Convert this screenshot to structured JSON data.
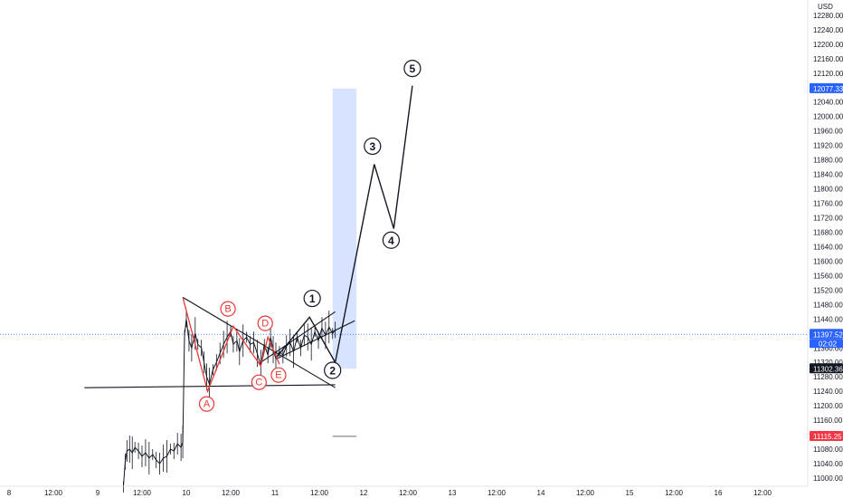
{
  "chart_data": {
    "type": "line",
    "currency": "USD",
    "y_range": [
      10960,
      12300
    ],
    "x_range": [
      8.0,
      17.0
    ],
    "grid": false,
    "y_ticks": [
      11000,
      11040,
      11080,
      11120,
      11160,
      11200,
      11240,
      11280,
      11320,
      11360,
      11400,
      11440,
      11480,
      11520,
      11560,
      11600,
      11640,
      11680,
      11720,
      11760,
      11800,
      11840,
      11880,
      11920,
      11960,
      12000,
      12040,
      12080,
      12120,
      12160,
      12200,
      12240,
      12280
    ],
    "y_tick_labels": [
      "11000.00",
      "11040.00",
      "11080.00",
      "11120.00",
      "11160.00",
      "11200.00",
      "11240.00",
      "11280.00",
      "11320.00",
      "11360.00",
      "11400.00",
      "11440.00",
      "11480.00",
      "11520.00",
      "11560.00",
      "11600.00",
      "11640.00",
      "11680.00",
      "11720.00",
      "11760.00",
      "11800.00",
      "11840.00",
      "11880.00",
      "11920.00",
      "11960.00",
      "12000.00",
      "12040.00",
      "12080.00",
      "12120.00",
      "12160.00",
      "12200.00",
      "12240.00",
      "12280.00"
    ],
    "x_ticks": [
      {
        "x": 8.0,
        "label": "8"
      },
      {
        "x": 8.5,
        "label": "12:00"
      },
      {
        "x": 9.0,
        "label": "9"
      },
      {
        "x": 9.5,
        "label": "12:00"
      },
      {
        "x": 10.0,
        "label": "10"
      },
      {
        "x": 10.5,
        "label": "12:00"
      },
      {
        "x": 11.0,
        "label": "11"
      },
      {
        "x": 11.5,
        "label": "12:00"
      },
      {
        "x": 12.0,
        "label": "12"
      },
      {
        "x": 12.5,
        "label": "12:00"
      },
      {
        "x": 13.0,
        "label": "13"
      },
      {
        "x": 13.5,
        "label": "12:00"
      },
      {
        "x": 14.0,
        "label": "14"
      },
      {
        "x": 14.5,
        "label": "12:00"
      },
      {
        "x": 15.0,
        "label": "15"
      },
      {
        "x": 15.5,
        "label": "12:00"
      },
      {
        "x": 16.0,
        "label": "16"
      },
      {
        "x": 16.5,
        "label": "12:00"
      }
    ],
    "price_series": [
      [
        9.29,
        10975
      ],
      [
        9.31,
        11045
      ],
      [
        9.33,
        11075
      ],
      [
        9.36,
        11080
      ],
      [
        9.39,
        11070
      ],
      [
        9.42,
        11085
      ],
      [
        9.46,
        11075
      ],
      [
        9.5,
        11060
      ],
      [
        9.54,
        11070
      ],
      [
        9.58,
        11055
      ],
      [
        9.62,
        11065
      ],
      [
        9.66,
        11050
      ],
      [
        9.7,
        11040
      ],
      [
        9.74,
        11055
      ],
      [
        9.78,
        11060
      ],
      [
        9.82,
        11080
      ],
      [
        9.86,
        11075
      ],
      [
        9.9,
        11095
      ],
      [
        9.94,
        11085
      ],
      [
        9.96,
        11100
      ],
      [
        9.98,
        11395
      ],
      [
        10.0,
        11440
      ],
      [
        10.03,
        11380
      ],
      [
        10.06,
        11360
      ],
      [
        10.1,
        11400
      ],
      [
        10.13,
        11370
      ],
      [
        10.17,
        11360
      ],
      [
        10.2,
        11320
      ],
      [
        10.23,
        11280
      ],
      [
        10.26,
        11260
      ],
      [
        10.3,
        11300
      ],
      [
        10.34,
        11320
      ],
      [
        10.38,
        11345
      ],
      [
        10.42,
        11370
      ],
      [
        10.46,
        11390
      ],
      [
        10.5,
        11405
      ],
      [
        10.53,
        11370
      ],
      [
        10.57,
        11380
      ],
      [
        10.6,
        11350
      ],
      [
        10.64,
        11380
      ],
      [
        10.68,
        11390
      ],
      [
        10.72,
        11370
      ],
      [
        10.76,
        11375
      ],
      [
        10.8,
        11345
      ],
      [
        10.84,
        11310
      ],
      [
        10.88,
        11370
      ],
      [
        10.92,
        11340
      ],
      [
        10.95,
        11390
      ],
      [
        10.98,
        11355
      ],
      [
        11.01,
        11330
      ],
      [
        11.05,
        11350
      ],
      [
        11.09,
        11340
      ],
      [
        11.13,
        11365
      ],
      [
        11.17,
        11375
      ],
      [
        11.21,
        11350
      ],
      [
        11.25,
        11390
      ],
      [
        11.29,
        11360
      ],
      [
        11.33,
        11395
      ],
      [
        11.37,
        11390
      ],
      [
        11.41,
        11370
      ],
      [
        11.45,
        11405
      ],
      [
        11.49,
        11380
      ],
      [
        11.53,
        11415
      ],
      [
        11.57,
        11395
      ],
      [
        11.61,
        11418
      ],
      [
        11.65,
        11400
      ],
      [
        11.68,
        11410
      ]
    ],
    "wave_abcde": [
      [
        9.96,
        11500
      ],
      [
        10.24,
        11240
      ],
      [
        10.53,
        11420
      ],
      [
        10.84,
        11310
      ],
      [
        10.92,
        11390
      ],
      [
        11.05,
        11315
      ]
    ],
    "projection_path": [
      [
        11.02,
        11335
      ],
      [
        11.39,
        11445
      ],
      [
        11.68,
        11320
      ],
      [
        12.12,
        11868
      ],
      [
        12.34,
        11690
      ],
      [
        12.55,
        12085
      ]
    ],
    "trendlines": [
      [
        [
          9.96,
          11500
        ],
        [
          11.68,
          11250
        ]
      ],
      [
        [
          8.85,
          11250
        ],
        [
          11.68,
          11258
        ]
      ],
      [
        [
          10.84,
          11320
        ],
        [
          11.68,
          11460
        ]
      ],
      [
        [
          11.02,
          11330
        ],
        [
          11.9,
          11435
        ]
      ]
    ],
    "long_box": {
      "x0": 11.65,
      "x1": 11.92,
      "y0": 11302.36,
      "y1": 12077.33
    },
    "short_box": {
      "x0": 11.65,
      "x1": 11.92,
      "y0": 11115.25,
      "y1": 11302.36
    },
    "current_price": 11397.52,
    "price_marker_lines": [
      11397.52
    ],
    "labels_red": [
      {
        "text": "A",
        "x": 10.23,
        "y": 11205
      },
      {
        "text": "B",
        "x": 10.47,
        "y": 11468
      },
      {
        "text": "C",
        "x": 10.82,
        "y": 11265
      },
      {
        "text": "D",
        "x": 10.89,
        "y": 11428
      },
      {
        "text": "E",
        "x": 11.04,
        "y": 11285
      }
    ],
    "labels_black": [
      {
        "text": "1",
        "x": 11.42,
        "y": 11497
      },
      {
        "text": "2",
        "x": 11.65,
        "y": 11298
      },
      {
        "text": "3",
        "x": 12.1,
        "y": 11918
      },
      {
        "text": "4",
        "x": 12.31,
        "y": 11658
      },
      {
        "text": "5",
        "x": 12.55,
        "y": 12133
      }
    ],
    "price_badges": [
      {
        "label": "12077.33",
        "value": 12077.33,
        "color": "#2962ff"
      },
      {
        "label": "11397.52",
        "value": 11397.52,
        "color": "#2962ff",
        "sub": "02:02"
      },
      {
        "label": "11302.36",
        "value": 11302.36,
        "color": "#131722"
      },
      {
        "label": "11115.25",
        "value": 11115.25,
        "color": "#f23645"
      }
    ]
  }
}
